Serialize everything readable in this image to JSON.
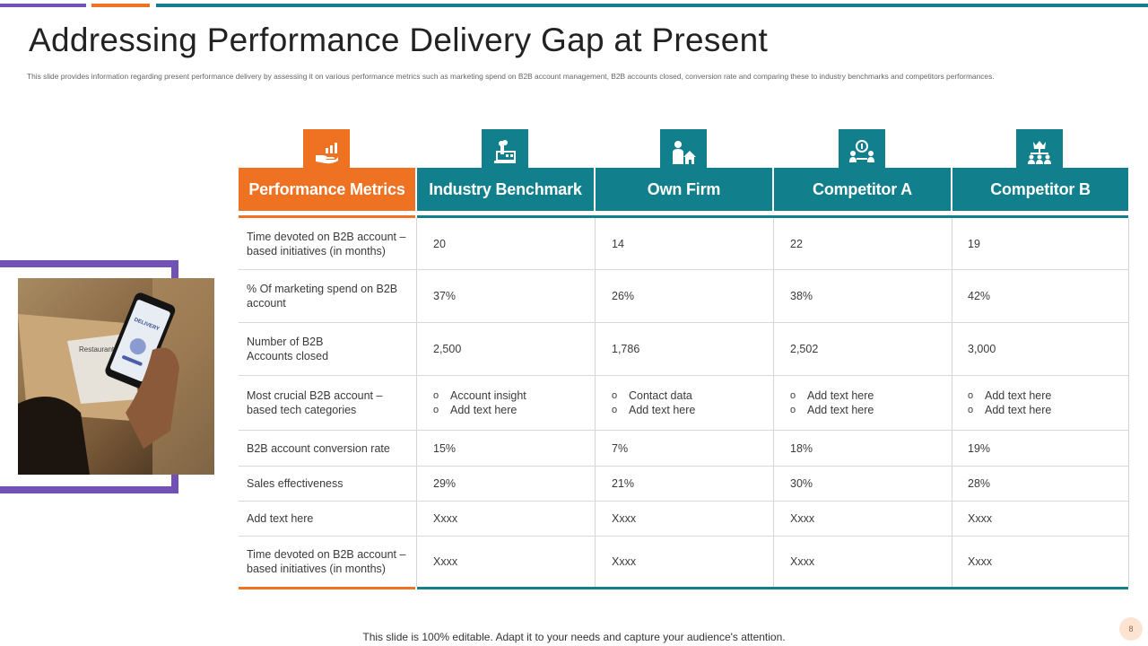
{
  "slide": {
    "title": "Addressing Performance Delivery Gap at Present",
    "subtitle": "This slide provides information regarding present performance delivery by assessing it on various performance metrics such as marketing spend on B2B account management, B2B accounts closed, conversion rate and comparing these to industry benchmarks and competitors performances.",
    "footer": "This slide is 100% editable. Adapt it to your needs and capture your audience's attention.",
    "page_number": "8"
  },
  "colors": {
    "orange": "#ef7122",
    "teal": "#127f8c",
    "purple": "#7251b5"
  },
  "table": {
    "headers": [
      {
        "label": "Performance Metrics",
        "icon": "hand-chart-icon"
      },
      {
        "label": "Industry Benchmark",
        "icon": "factory-icon"
      },
      {
        "label": "Own Firm",
        "icon": "person-house-icon"
      },
      {
        "label": "Competitor A",
        "icon": "meeting-icon"
      },
      {
        "label": "Competitor B",
        "icon": "crown-hierarchy-icon"
      }
    ],
    "rows": [
      {
        "metric": "Time devoted  on B2B account – based initiatives (in months)",
        "values": [
          "20",
          "14",
          "22",
          "19"
        ]
      },
      {
        "metric": "% Of marketing spend on B2B account",
        "values": [
          "37%",
          "26%",
          "38%",
          "42%"
        ]
      },
      {
        "metric": "Number of B2B Accounts closed",
        "values": [
          "2,500",
          "1,786",
          "2,502",
          "3,000"
        ]
      },
      {
        "metric": "Most crucial B2B account – based tech categories",
        "bullets": [
          [
            "Account insight",
            "Add text here"
          ],
          [
            "Contact data",
            "Add text here"
          ],
          [
            "Add text here",
            "Add text here"
          ],
          [
            "Add text here",
            "Add text here"
          ]
        ]
      },
      {
        "metric": "B2B account conversion rate",
        "values": [
          "15%",
          "7%",
          "18%",
          "19%"
        ]
      },
      {
        "metric": "Sales effectiveness",
        "values": [
          "29%",
          "21%",
          "30%",
          "28%"
        ]
      },
      {
        "metric": "Add text here",
        "values": [
          "Xxxx",
          "Xxxx",
          "Xxxx",
          "Xxxx"
        ]
      },
      {
        "metric": "Time devoted  on B2B account – based initiatives (in months)",
        "values": [
          "Xxxx",
          "Xxxx",
          "Xxxx",
          "Xxxx"
        ]
      }
    ]
  },
  "photo": {
    "phone_screen_text": "DELIVERY",
    "paper_text": "Restaurant"
  }
}
